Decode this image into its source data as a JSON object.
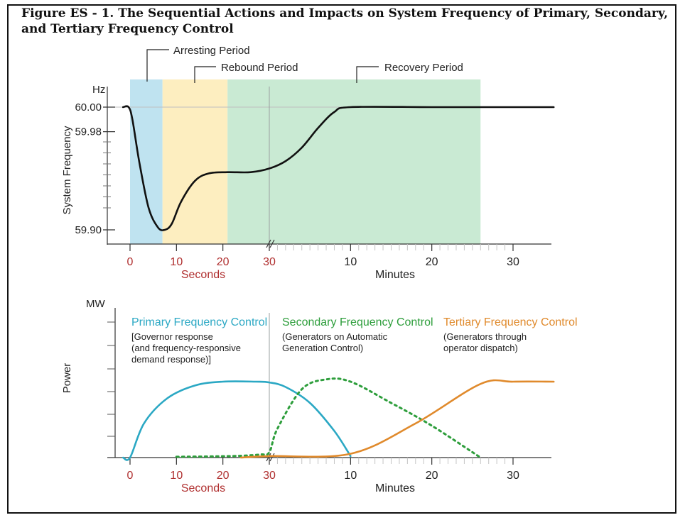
{
  "figure": {
    "title": "Figure ES - 1. The Sequential Actions and Impacts on System Frequency of Primary, Secondary, and Tertiary Frequency Control"
  },
  "colors": {
    "arresting_band": "#bfe3f0",
    "rebound_band": "#fdeec0",
    "recovery_band": "#c9ead3",
    "primary": "#2ba8c4",
    "secondary": "#2e9e3c",
    "tertiary": "#e08a2c",
    "frequency_curve": "#111111",
    "axis_label_red": "#b03030"
  },
  "chart_data": [
    {
      "type": "line",
      "id": "frequency",
      "ylabel": "System Frequency",
      "yunit": "Hz",
      "ylim": [
        59.895,
        60.005
      ],
      "yticks": [
        {
          "value": 60.0,
          "label": "60.00"
        },
        {
          "value": 59.98,
          "label": "59.98"
        },
        {
          "value": 59.9,
          "label": "59.90"
        }
      ],
      "x_segments": [
        {
          "name": "Seconds",
          "range": [
            0,
            30
          ],
          "ticks": [
            "0",
            "10",
            "20",
            "30"
          ]
        },
        {
          "name": "Minutes",
          "range": [
            0,
            30
          ],
          "ticks": [
            "10",
            "20",
            "30"
          ]
        }
      ],
      "periods": [
        {
          "label": "Arresting Period",
          "start_s": 0,
          "end_s": 7
        },
        {
          "label": "Rebound Period",
          "start_s": 7,
          "end_s": 21
        },
        {
          "label": "Recovery Period",
          "start_s": 21,
          "end_min": 26
        }
      ],
      "series": [
        {
          "points": [
            {
              "seg": "s",
              "x": -1.5,
              "y": 60.0
            },
            {
              "seg": "s",
              "x": -0.3,
              "y": 60.0
            },
            {
              "seg": "s",
              "x": 0.5,
              "y": 59.99
            },
            {
              "seg": "s",
              "x": 2,
              "y": 59.955
            },
            {
              "seg": "s",
              "x": 4,
              "y": 59.918
            },
            {
              "seg": "s",
              "x": 6,
              "y": 59.902
            },
            {
              "seg": "s",
              "x": 7.5,
              "y": 59.9
            },
            {
              "seg": "s",
              "x": 9,
              "y": 59.905
            },
            {
              "seg": "s",
              "x": 11,
              "y": 59.923
            },
            {
              "seg": "s",
              "x": 14,
              "y": 59.94
            },
            {
              "seg": "s",
              "x": 17,
              "y": 59.946
            },
            {
              "seg": "s",
              "x": 21,
              "y": 59.947
            },
            {
              "seg": "s",
              "x": 26,
              "y": 59.947
            },
            {
              "seg": "s",
              "x": 30,
              "y": 59.95
            },
            {
              "seg": "m",
              "x": 2,
              "y": 59.956
            },
            {
              "seg": "m",
              "x": 4,
              "y": 59.967
            },
            {
              "seg": "m",
              "x": 6,
              "y": 59.983
            },
            {
              "seg": "m",
              "x": 8,
              "y": 59.996
            },
            {
              "seg": "m",
              "x": 10,
              "y": 60.0
            },
            {
              "seg": "m",
              "x": 20,
              "y": 60.0
            },
            {
              "seg": "m",
              "x": 30,
              "y": 60.0
            },
            {
              "seg": "m",
              "x": 35,
              "y": 60.0
            }
          ]
        }
      ]
    },
    {
      "type": "line",
      "id": "power",
      "ylabel": "Power",
      "yunit": "MW",
      "ylim": [
        0,
        1.1
      ],
      "x_segments": [
        {
          "name": "Seconds",
          "range": [
            0,
            30
          ],
          "ticks": [
            "0",
            "10",
            "20",
            "30"
          ]
        },
        {
          "name": "Minutes",
          "range": [
            0,
            30
          ],
          "ticks": [
            "10",
            "20",
            "30"
          ]
        }
      ],
      "series": [
        {
          "name": "Primary Frequency Control",
          "note": "[Governor response (and frequency-responsive demand response)]",
          "style": "solid",
          "points": [
            {
              "seg": "s",
              "x": -1.5,
              "y": 0
            },
            {
              "seg": "s",
              "x": 0,
              "y": 0
            },
            {
              "seg": "s",
              "x": 3,
              "y": 0.45
            },
            {
              "seg": "s",
              "x": 8,
              "y": 0.78
            },
            {
              "seg": "s",
              "x": 14,
              "y": 0.95
            },
            {
              "seg": "s",
              "x": 20,
              "y": 1.0
            },
            {
              "seg": "s",
              "x": 27,
              "y": 1.0
            },
            {
              "seg": "s",
              "x": 30,
              "y": 0.99
            },
            {
              "seg": "m",
              "x": 2,
              "y": 0.93
            },
            {
              "seg": "m",
              "x": 5,
              "y": 0.72
            },
            {
              "seg": "m",
              "x": 8,
              "y": 0.35
            },
            {
              "seg": "m",
              "x": 10,
              "y": 0.02
            }
          ]
        },
        {
          "name": "Secondary Frequency Control",
          "note": "(Generators on Automatic Generation Control)",
          "style": "dotted",
          "points": [
            {
              "seg": "s",
              "x": 10,
              "y": 0.01
            },
            {
              "seg": "s",
              "x": 22,
              "y": 0.02
            },
            {
              "seg": "s",
              "x": 28,
              "y": 0.04
            },
            {
              "seg": "s",
              "x": 30,
              "y": 0.07
            },
            {
              "seg": "m",
              "x": 1,
              "y": 0.38
            },
            {
              "seg": "m",
              "x": 4,
              "y": 0.9
            },
            {
              "seg": "m",
              "x": 7,
              "y": 1.03
            },
            {
              "seg": "m",
              "x": 10,
              "y": 1.0
            },
            {
              "seg": "m",
              "x": 15,
              "y": 0.72
            },
            {
              "seg": "m",
              "x": 20,
              "y": 0.42
            },
            {
              "seg": "m",
              "x": 26,
              "y": 0.0
            }
          ]
        },
        {
          "name": "Tertiary Frequency Control",
          "note": "(Generators through operator dispatch)",
          "style": "solid",
          "points": [
            {
              "seg": "m",
              "x": -3.5,
              "y": 0.0
            },
            {
              "seg": "m",
              "x": 0,
              "y": 0.02
            },
            {
              "seg": "m",
              "x": 10,
              "y": 0.05
            },
            {
              "seg": "m",
              "x": 18,
              "y": 0.45
            },
            {
              "seg": "m",
              "x": 26,
              "y": 0.97
            },
            {
              "seg": "m",
              "x": 30,
              "y": 1.0
            },
            {
              "seg": "m",
              "x": 35,
              "y": 1.0
            }
          ]
        }
      ]
    }
  ]
}
